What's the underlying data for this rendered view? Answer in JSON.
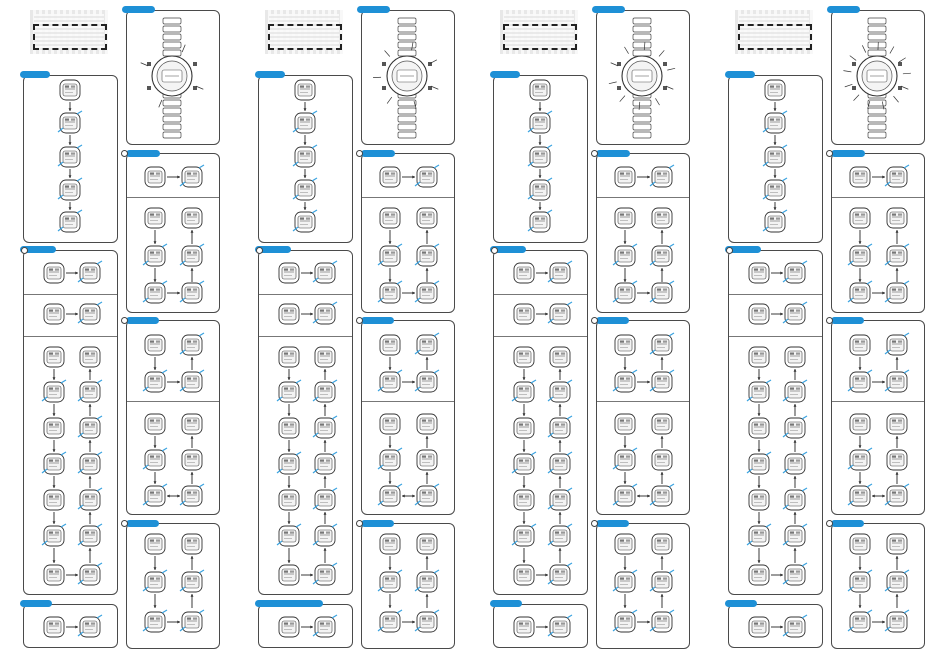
{
  "page": {
    "columns": 4
  },
  "illustration": {
    "icon": "watch-icon"
  },
  "display_icon": "watch-display-icon",
  "arrow_icons": {
    "down": "arrow-down-icon",
    "up": "arrow-up-icon",
    "right": "arrow-right-icon",
    "both": "arrow-both-icon"
  },
  "colors": {
    "accent": "#1e90d6",
    "line": "#4a4a4a",
    "highlight": "#3aa3e0"
  }
}
